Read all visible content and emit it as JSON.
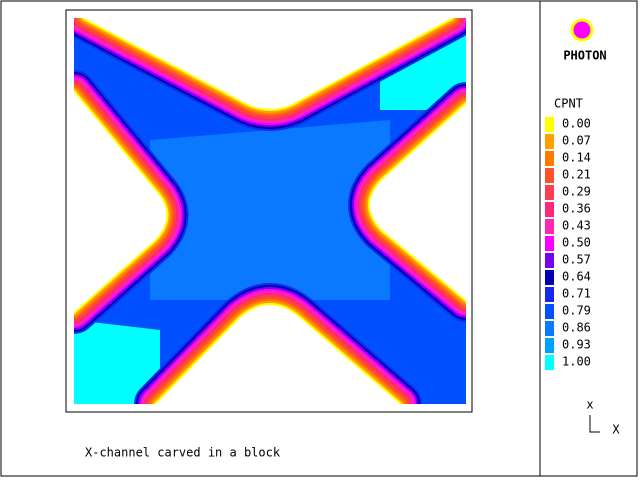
{
  "app": {
    "logo": "PHOTON"
  },
  "legend": {
    "title": "CPNT",
    "levels": [
      {
        "label": "0.00",
        "color": "#ffff00"
      },
      {
        "label": "0.07",
        "color": "#ffa000"
      },
      {
        "label": "0.14",
        "color": "#ff7800"
      },
      {
        "label": "0.21",
        "color": "#ff5028"
      },
      {
        "label": "0.29",
        "color": "#ff3c50"
      },
      {
        "label": "0.36",
        "color": "#ff2878"
      },
      {
        "label": "0.43",
        "color": "#ff28b4"
      },
      {
        "label": "0.50",
        "color": "#ff00ff"
      },
      {
        "label": "0.57",
        "color": "#7800f0"
      },
      {
        "label": "0.64",
        "color": "#0000b4"
      },
      {
        "label": "0.71",
        "color": "#1428f0"
      },
      {
        "label": "0.79",
        "color": "#0050ff"
      },
      {
        "label": "0.86",
        "color": "#0a78ff"
      },
      {
        "label": "0.93",
        "color": "#00a0ff"
      },
      {
        "label": "1.00",
        "color": "#00ffff"
      }
    ]
  },
  "caption": "X-channel carved in a block",
  "axes": {
    "small": "x",
    "big": "X"
  }
}
